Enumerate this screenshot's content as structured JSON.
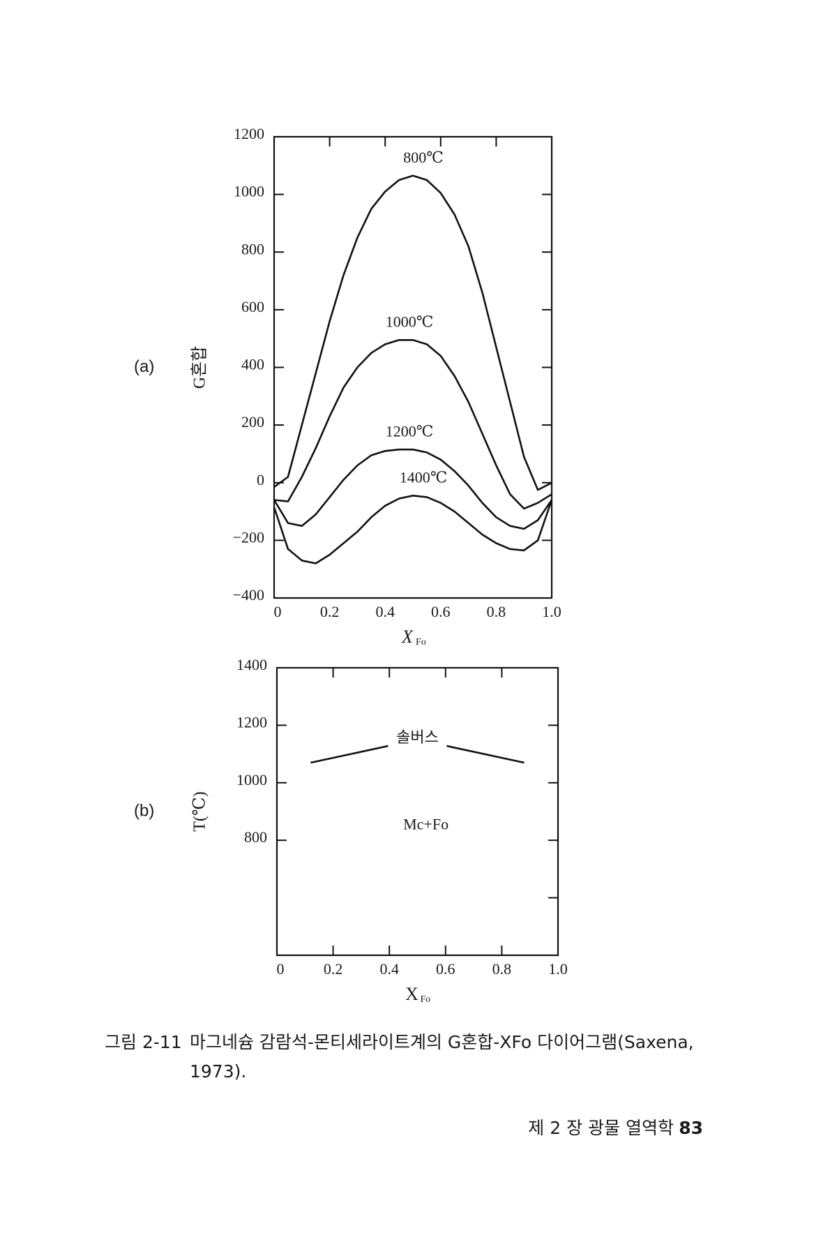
{
  "chart_data": [
    {
      "type": "line",
      "panel_label": "(a)",
      "ylabel": "G혼합",
      "xlabel": "X",
      "xlabel_subscript": "Fo",
      "xlim": [
        0,
        1
      ],
      "ylim": [
        -400,
        1200
      ],
      "xticks": [
        0,
        0.2,
        0.4,
        0.6,
        0.8,
        {
          "value": 1,
          "label": "1.0"
        }
      ],
      "yticks": [
        {
          "value": -400,
          "label": "−400"
        },
        {
          "value": -200,
          "label": "−200"
        },
        0,
        200,
        400,
        600,
        800,
        1000,
        1200
      ],
      "x": [
        0,
        0.05,
        0.1,
        0.15,
        0.2,
        0.25,
        0.3,
        0.35,
        0.4,
        0.45,
        0.5,
        0.55,
        0.6,
        0.65,
        0.7,
        0.75,
        0.8,
        0.85,
        0.9,
        0.95,
        1
      ],
      "series": [
        {
          "name": "800℃",
          "color": "#111111",
          "values": [
            -15,
            20,
            200,
            380,
            560,
            720,
            850,
            950,
            1010,
            1050,
            1065,
            1050,
            1005,
            930,
            820,
            660,
            470,
            280,
            90,
            -25,
            0
          ]
        },
        {
          "name": "1000℃",
          "color": "#111111",
          "values": [
            -60,
            -65,
            20,
            120,
            230,
            330,
            400,
            450,
            480,
            495,
            495,
            480,
            440,
            370,
            280,
            170,
            60,
            -40,
            -90,
            -70,
            -40
          ]
        },
        {
          "name": "1200℃",
          "color": "#111111",
          "values": [
            -60,
            -140,
            -150,
            -110,
            -50,
            10,
            60,
            95,
            110,
            115,
            115,
            105,
            80,
            40,
            -10,
            -70,
            -120,
            -150,
            -160,
            -130,
            -60
          ]
        },
        {
          "name": "1400℃",
          "color": "#111111",
          "values": [
            -85,
            -230,
            -270,
            -280,
            -250,
            -210,
            -170,
            -120,
            -80,
            -55,
            -45,
            -50,
            -70,
            -100,
            -140,
            -180,
            -210,
            -230,
            -235,
            -200,
            -60
          ]
        }
      ]
    },
    {
      "type": "line",
      "panel_label": "(b)",
      "ylabel": "T(℃)",
      "xlabel": "X",
      "xlabel_subscript": "Fo",
      "xlim": [
        0,
        1
      ],
      "ylim": [
        400,
        1400
      ],
      "xticks": [
        0,
        0.2,
        0.4,
        0.6,
        0.8,
        {
          "value": 1,
          "label": "1.0"
        }
      ],
      "yticks": [
        {
          "value": 600,
          "label": null
        },
        800,
        1000,
        1200,
        1400
      ],
      "x": [
        0.12,
        0.5,
        0.88
      ],
      "series": [
        {
          "name": "솔버스",
          "color": "#111111",
          "values": [
            1070,
            1150,
            1070
          ]
        }
      ],
      "annotations": [
        "Mc+Fo"
      ]
    }
  ],
  "caption": {
    "label": "그림 2-11",
    "lines": [
      "마그네슘 감람석-몬티세라이트계의 G혼합-XFo 다이어그램(Saxena,",
      "1973)."
    ]
  },
  "footer": {
    "chapter": "제 2 장  광물 열역학",
    "page": "83"
  }
}
